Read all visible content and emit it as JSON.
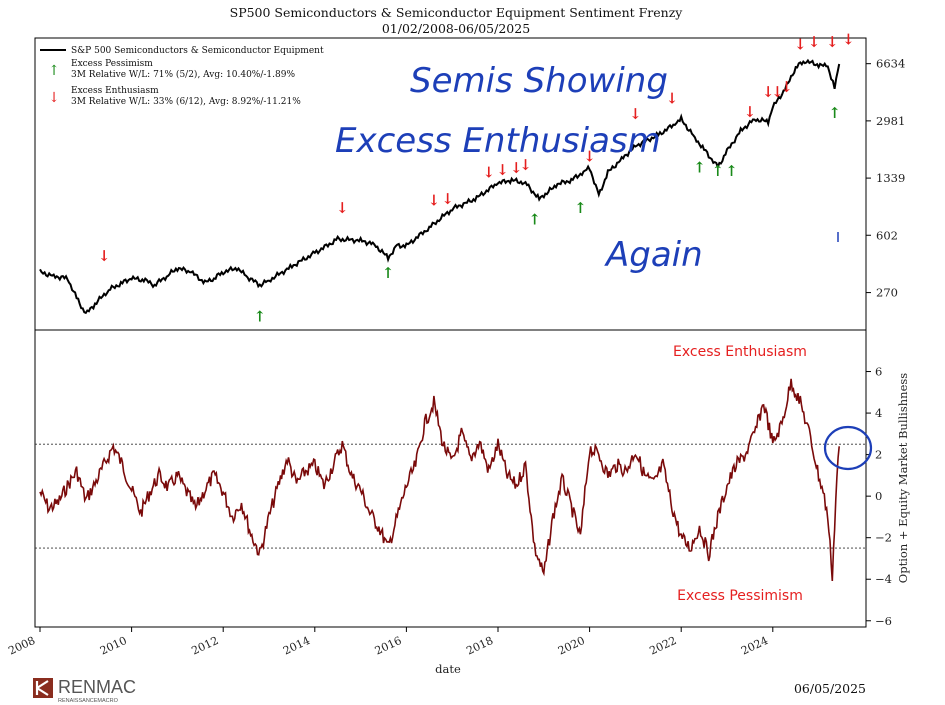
{
  "chart_data": [
    {
      "type": "line",
      "panel": "top",
      "title": "SP500 Semiconductors & Semiconductor Equipment Sentiment Frenzy",
      "subtitle": "01/02/2008-06/05/2025",
      "yscale": "log",
      "ylim": [
        160,
        9500
      ],
      "y_ticks": [
        270,
        602,
        1339,
        2981,
        6634
      ],
      "y_tick_labels": [
        "270",
        "602",
        "1339",
        "2981",
        "6634"
      ],
      "legend_position": "top-left",
      "series": [
        {
          "name": "S&P 500 Semiconductors & Semiconductor Equipment",
          "color": "#000000",
          "x": [
            2008.0,
            2008.3,
            2008.6,
            2008.8,
            2009.0,
            2009.2,
            2009.5,
            2009.8,
            2010.0,
            2010.3,
            2010.5,
            2010.8,
            2011.0,
            2011.3,
            2011.6,
            2011.8,
            2012.0,
            2012.3,
            2012.5,
            2012.8,
            2013.0,
            2013.5,
            2014.0,
            2014.5,
            2015.0,
            2015.3,
            2015.6,
            2015.8,
            2016.0,
            2016.5,
            2017.0,
            2017.5,
            2018.0,
            2018.3,
            2018.6,
            2018.9,
            2019.0,
            2019.3,
            2019.6,
            2019.9,
            2020.0,
            2020.2,
            2020.4,
            2020.7,
            2021.0,
            2021.5,
            2021.9,
            2022.0,
            2022.3,
            2022.5,
            2022.8,
            2023.0,
            2023.3,
            2023.6,
            2023.9,
            2024.0,
            2024.3,
            2024.5,
            2024.7,
            2025.0,
            2025.2,
            2025.35,
            2025.45
          ],
          "values": [
            360,
            340,
            330,
            250,
            200,
            230,
            280,
            310,
            330,
            320,
            300,
            345,
            380,
            360,
            310,
            330,
            360,
            380,
            340,
            300,
            320,
            390,
            470,
            570,
            560,
            530,
            440,
            520,
            520,
            670,
            870,
            1000,
            1250,
            1300,
            1250,
            1000,
            1050,
            1230,
            1300,
            1480,
            1550,
            1050,
            1450,
            1750,
            2100,
            2450,
            2900,
            3050,
            2350,
            2000,
            1560,
            1950,
            2600,
            3050,
            2950,
            3600,
            4800,
            6300,
            6900,
            6500,
            6400,
            4700,
            6600
          ]
        }
      ],
      "markers": [
        {
          "name": "Excess Pessimism",
          "symbol": "↑",
          "color": "#1a8a1a",
          "x": [
            2012.8,
            2015.6,
            2018.8,
            2019.8,
            2022.4,
            2022.8,
            2023.1,
            2025.35
          ],
          "y": [
            180,
            330,
            700,
            820,
            1450,
            1380,
            1380,
            3100
          ]
        },
        {
          "name": "Excess Enthusiasm",
          "symbol": "↓",
          "color": "#e51f1f",
          "x": [
            2009.4,
            2014.6,
            2016.6,
            2016.9,
            2017.8,
            2018.1,
            2018.4,
            2018.6,
            2020.0,
            2021.0,
            2021.8,
            2023.5,
            2023.9,
            2024.1,
            2024.3,
            2024.6,
            2024.9,
            2025.3,
            2025.65
          ],
          "y": [
            420,
            820,
            910,
            930,
            1350,
            1400,
            1440,
            1500,
            1690,
            3050,
            3800,
            3150,
            4150,
            4150,
            4450,
            8100,
            8400,
            8400,
            8700
          ]
        }
      ],
      "legend": [
        {
          "label": "S&P 500 Semiconductors & Semiconductor Equipment"
        },
        {
          "label": "Excess Pessimism",
          "sub": "3M Relative W/L: 71% (5/2), Avg: 10.40%/-1.89%"
        },
        {
          "label": "Excess Enthusiasm",
          "sub": "3M Relative W/L: 33% (6/12), Avg: 8.92%/-11.21%"
        }
      ]
    },
    {
      "type": "line",
      "panel": "bottom",
      "ylabel": "Option + Equity Market Bullishness",
      "xlabel": "date",
      "ylim": [
        -6.3,
        8.0
      ],
      "y_ticks": [
        -6,
        -4,
        -2,
        0,
        2,
        4,
        6
      ],
      "y_tick_labels": [
        "−6",
        "−4",
        "−2",
        "0",
        "2",
        "4",
        "6"
      ],
      "x_ticks": [
        2008,
        2010,
        2012,
        2014,
        2016,
        2018,
        2020,
        2022,
        2024
      ],
      "x_tick_labels": [
        "2008",
        "2010",
        "2012",
        "2014",
        "2016",
        "2018",
        "2020",
        "2022",
        "2024"
      ],
      "thresholds": [
        2.5,
        -2.5
      ],
      "annotations": [
        "Excess Enthusiasm",
        "Excess Pessimism"
      ],
      "series": [
        {
          "name": "Option + Equity Market Bullishness",
          "color": "#7a0a0a",
          "x": [
            2008.0,
            2008.2,
            2008.4,
            2008.6,
            2008.8,
            2009.0,
            2009.2,
            2009.4,
            2009.6,
            2009.8,
            2010.0,
            2010.2,
            2010.4,
            2010.6,
            2010.8,
            2011.0,
            2011.2,
            2011.4,
            2011.6,
            2011.8,
            2012.0,
            2012.2,
            2012.4,
            2012.6,
            2012.8,
            2013.0,
            2013.2,
            2013.4,
            2013.6,
            2013.8,
            2014.0,
            2014.2,
            2014.4,
            2014.6,
            2014.8,
            2015.0,
            2015.2,
            2015.4,
            2015.6,
            2015.8,
            2016.0,
            2016.2,
            2016.4,
            2016.6,
            2016.8,
            2017.0,
            2017.2,
            2017.4,
            2017.6,
            2017.8,
            2018.0,
            2018.2,
            2018.4,
            2018.6,
            2018.8,
            2019.0,
            2019.2,
            2019.4,
            2019.6,
            2019.8,
            2020.0,
            2020.2,
            2020.4,
            2020.6,
            2020.8,
            2021.0,
            2021.2,
            2021.4,
            2021.6,
            2021.8,
            2022.0,
            2022.2,
            2022.4,
            2022.6,
            2022.8,
            2023.0,
            2023.2,
            2023.4,
            2023.6,
            2023.8,
            2024.0,
            2024.2,
            2024.4,
            2024.6,
            2024.8,
            2025.0,
            2025.1,
            2025.2,
            2025.3,
            2025.4,
            2025.45
          ],
          "values": [
            0.2,
            -0.6,
            -0.3,
            0.5,
            1.2,
            -0.2,
            0.6,
            1.5,
            2.4,
            1.5,
            0.3,
            -0.8,
            0.2,
            1.0,
            0.4,
            1.0,
            0.2,
            -0.6,
            0.3,
            1.0,
            0.2,
            -1.0,
            -0.3,
            -1.8,
            -2.8,
            -1.0,
            0.5,
            1.8,
            0.6,
            1.2,
            1.5,
            0.5,
            1.5,
            2.5,
            1.0,
            0.3,
            -0.8,
            -1.5,
            -2.5,
            -1.0,
            0.5,
            1.5,
            3.5,
            4.5,
            2.5,
            1.6,
            3.0,
            1.8,
            2.6,
            1.2,
            2.5,
            1.0,
            0.5,
            1.5,
            -2.5,
            -3.8,
            -1.0,
            0.8,
            -0.5,
            -2.0,
            2.3,
            2.0,
            1.0,
            1.5,
            1.2,
            2.2,
            1.0,
            0.6,
            1.5,
            -0.5,
            -2.0,
            -2.5,
            -1.5,
            -2.8,
            -1.0,
            0.5,
            1.5,
            2.0,
            3.0,
            4.5,
            2.5,
            3.5,
            5.5,
            4.5,
            3.0,
            1.0,
            0.2,
            -1.0,
            -3.8,
            1.0,
            2.4
          ]
        }
      ]
    }
  ],
  "handwriting": {
    "line1": "Semis Showing",
    "line2": "Excess Enthusiasm",
    "line3": "Again"
  },
  "footer": {
    "logo_text": "RENMAC",
    "logo_sub": "RENAISSANCEMACRO",
    "date": "06/05/2025"
  }
}
